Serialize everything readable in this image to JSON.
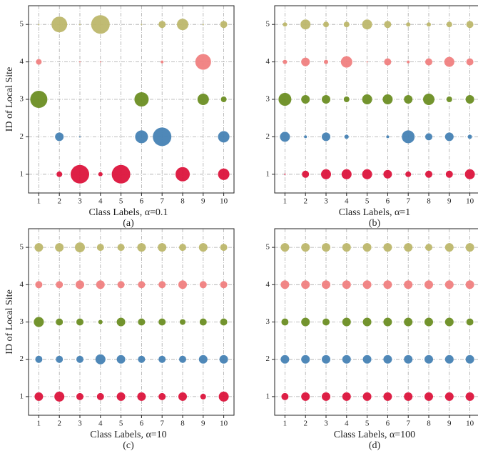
{
  "chart_data": [
    {
      "type": "scatter",
      "ylabel": "ID of Local Site",
      "xlabel": "Class Labels, α=0.1",
      "caption": "(a)",
      "x": [
        1,
        2,
        3,
        4,
        5,
        6,
        7,
        8,
        9,
        10
      ],
      "xlim": [
        0.5,
        10.5
      ],
      "ylim": [
        0.5,
        5.5
      ],
      "xticks": [
        1,
        2,
        3,
        4,
        5,
        6,
        7,
        8,
        9,
        10
      ],
      "yticks": [
        1,
        2,
        3,
        4,
        5
      ],
      "grid": true,
      "series": [
        {
          "color": "#dc143c",
          "values": [
            1,
            1,
            1,
            1,
            1,
            1,
            1,
            1,
            1,
            1
          ],
          "sizes": [
            0,
            4,
            13,
            3,
            13,
            0,
            0,
            10,
            0,
            8
          ]
        },
        {
          "color": "#4682b4",
          "values": [
            2,
            2,
            2,
            2,
            2,
            2,
            2,
            2,
            2,
            2
          ],
          "sizes": [
            0,
            6,
            1,
            0,
            0,
            9,
            13,
            0,
            0,
            8
          ]
        },
        {
          "color": "#6b8e23",
          "values": [
            3,
            3,
            3,
            3,
            3,
            3,
            3,
            3,
            3,
            3
          ],
          "sizes": [
            12,
            0,
            0,
            0,
            0,
            10,
            0,
            0,
            8,
            4
          ]
        },
        {
          "color": "#f08080",
          "values": [
            4,
            4,
            4,
            4,
            4,
            4,
            4,
            4,
            4,
            4
          ],
          "sizes": [
            4,
            0,
            1,
            1,
            0,
            0,
            2,
            0,
            11,
            0
          ]
        },
        {
          "color": "#bdb76b",
          "values": [
            5,
            5,
            5,
            5,
            5,
            5,
            5,
            5,
            5,
            5
          ],
          "sizes": [
            1,
            11,
            1,
            13,
            0,
            1,
            5,
            8,
            1,
            5
          ]
        }
      ]
    },
    {
      "type": "scatter",
      "xlabel": "Class Labels, α=1",
      "caption": "(b)",
      "x": [
        1,
        2,
        3,
        4,
        5,
        6,
        7,
        8,
        9,
        10
      ],
      "xlim": [
        0.5,
        10.5
      ],
      "ylim": [
        0.5,
        5.5
      ],
      "xticks": [
        1,
        2,
        3,
        4,
        5,
        6,
        7,
        8,
        9,
        10
      ],
      "yticks": [
        1,
        2,
        3,
        4,
        5
      ],
      "grid": true,
      "series": [
        {
          "color": "#dc143c",
          "values": [
            1,
            1,
            1,
            1,
            1,
            1,
            1,
            1,
            1,
            1
          ],
          "sizes": [
            1,
            5,
            7,
            7,
            7,
            6,
            4,
            5,
            5,
            7
          ]
        },
        {
          "color": "#4682b4",
          "values": [
            2,
            2,
            2,
            2,
            2,
            2,
            2,
            2,
            2,
            2
          ],
          "sizes": [
            7,
            2,
            6,
            3,
            0,
            2,
            9,
            5,
            6,
            3
          ]
        },
        {
          "color": "#6b8e23",
          "values": [
            3,
            3,
            3,
            3,
            3,
            3,
            3,
            3,
            3,
            3
          ],
          "sizes": [
            9,
            6,
            6,
            4,
            7,
            7,
            6,
            8,
            4,
            6
          ]
        },
        {
          "color": "#f08080",
          "values": [
            4,
            4,
            4,
            4,
            4,
            4,
            4,
            4,
            4,
            4
          ],
          "sizes": [
            3,
            6,
            3,
            8,
            1,
            5,
            2,
            5,
            7,
            5
          ]
        },
        {
          "color": "#bdb76b",
          "values": [
            5,
            5,
            5,
            5,
            5,
            5,
            5,
            5,
            5,
            5
          ],
          "sizes": [
            3,
            7,
            4,
            4,
            7,
            5,
            3,
            3,
            4,
            5
          ]
        }
      ]
    },
    {
      "type": "scatter",
      "ylabel": "ID of Local Site",
      "xlabel": "Class Labels, α=10",
      "caption": "(c)",
      "x": [
        1,
        2,
        3,
        4,
        5,
        6,
        7,
        8,
        9,
        10
      ],
      "xlim": [
        0.5,
        10.5
      ],
      "ylim": [
        0.5,
        5.5
      ],
      "xticks": [
        1,
        2,
        3,
        4,
        5,
        6,
        7,
        8,
        9,
        10
      ],
      "yticks": [
        1,
        2,
        3,
        4,
        5
      ],
      "grid": true,
      "series": [
        {
          "color": "#dc143c",
          "values": [
            1,
            1,
            1,
            1,
            1,
            1,
            1,
            1,
            1,
            1
          ],
          "sizes": [
            6,
            7,
            5,
            5,
            6,
            6,
            5,
            6,
            4,
            7
          ]
        },
        {
          "color": "#4682b4",
          "values": [
            2,
            2,
            2,
            2,
            2,
            2,
            2,
            2,
            2,
            2
          ],
          "sizes": [
            5,
            5,
            5,
            7,
            6,
            5,
            5,
            5,
            6,
            6
          ]
        },
        {
          "color": "#6b8e23",
          "values": [
            3,
            3,
            3,
            3,
            3,
            3,
            3,
            3,
            3,
            3
          ],
          "sizes": [
            7,
            5,
            5,
            3,
            6,
            5,
            5,
            4,
            5,
            5
          ]
        },
        {
          "color": "#f08080",
          "values": [
            4,
            4,
            4,
            4,
            4,
            4,
            4,
            4,
            4,
            4
          ],
          "sizes": [
            5,
            5,
            6,
            6,
            5,
            5,
            5,
            6,
            5,
            5
          ]
        },
        {
          "color": "#bdb76b",
          "values": [
            5,
            5,
            5,
            5,
            5,
            5,
            5,
            5,
            5,
            5
          ],
          "sizes": [
            6,
            6,
            7,
            5,
            5,
            6,
            6,
            5,
            6,
            5
          ]
        }
      ]
    },
    {
      "type": "scatter",
      "xlabel": "Class Labels, α=100",
      "caption": "(d)",
      "x": [
        1,
        2,
        3,
        4,
        5,
        6,
        7,
        8,
        9,
        10
      ],
      "xlim": [
        0.5,
        10.5
      ],
      "ylim": [
        0.5,
        5.5
      ],
      "xticks": [
        1,
        2,
        3,
        4,
        5,
        6,
        7,
        8,
        9,
        10
      ],
      "yticks": [
        1,
        2,
        3,
        4,
        5
      ],
      "grid": true,
      "series": [
        {
          "color": "#dc143c",
          "values": [
            1,
            1,
            1,
            1,
            1,
            1,
            1,
            1,
            1,
            1
          ],
          "sizes": [
            5,
            6,
            6,
            6,
            6,
            6,
            6,
            6,
            6,
            6
          ]
        },
        {
          "color": "#4682b4",
          "values": [
            2,
            2,
            2,
            2,
            2,
            2,
            2,
            2,
            2,
            2
          ],
          "sizes": [
            6,
            6,
            6,
            6,
            6,
            6,
            6,
            6,
            6,
            6
          ]
        },
        {
          "color": "#6b8e23",
          "values": [
            3,
            3,
            3,
            3,
            3,
            3,
            3,
            3,
            3,
            3
          ],
          "sizes": [
            5,
            6,
            5,
            6,
            6,
            6,
            6,
            6,
            6,
            5
          ]
        },
        {
          "color": "#f08080",
          "values": [
            4,
            4,
            4,
            4,
            4,
            4,
            4,
            4,
            4,
            4
          ],
          "sizes": [
            6,
            6,
            6,
            6,
            6,
            6,
            6,
            6,
            6,
            6
          ]
        },
        {
          "color": "#bdb76b",
          "values": [
            5,
            5,
            5,
            5,
            5,
            5,
            5,
            5,
            5,
            5
          ],
          "sizes": [
            6,
            6,
            6,
            6,
            6,
            6,
            6,
            5,
            6,
            6
          ]
        }
      ]
    }
  ]
}
